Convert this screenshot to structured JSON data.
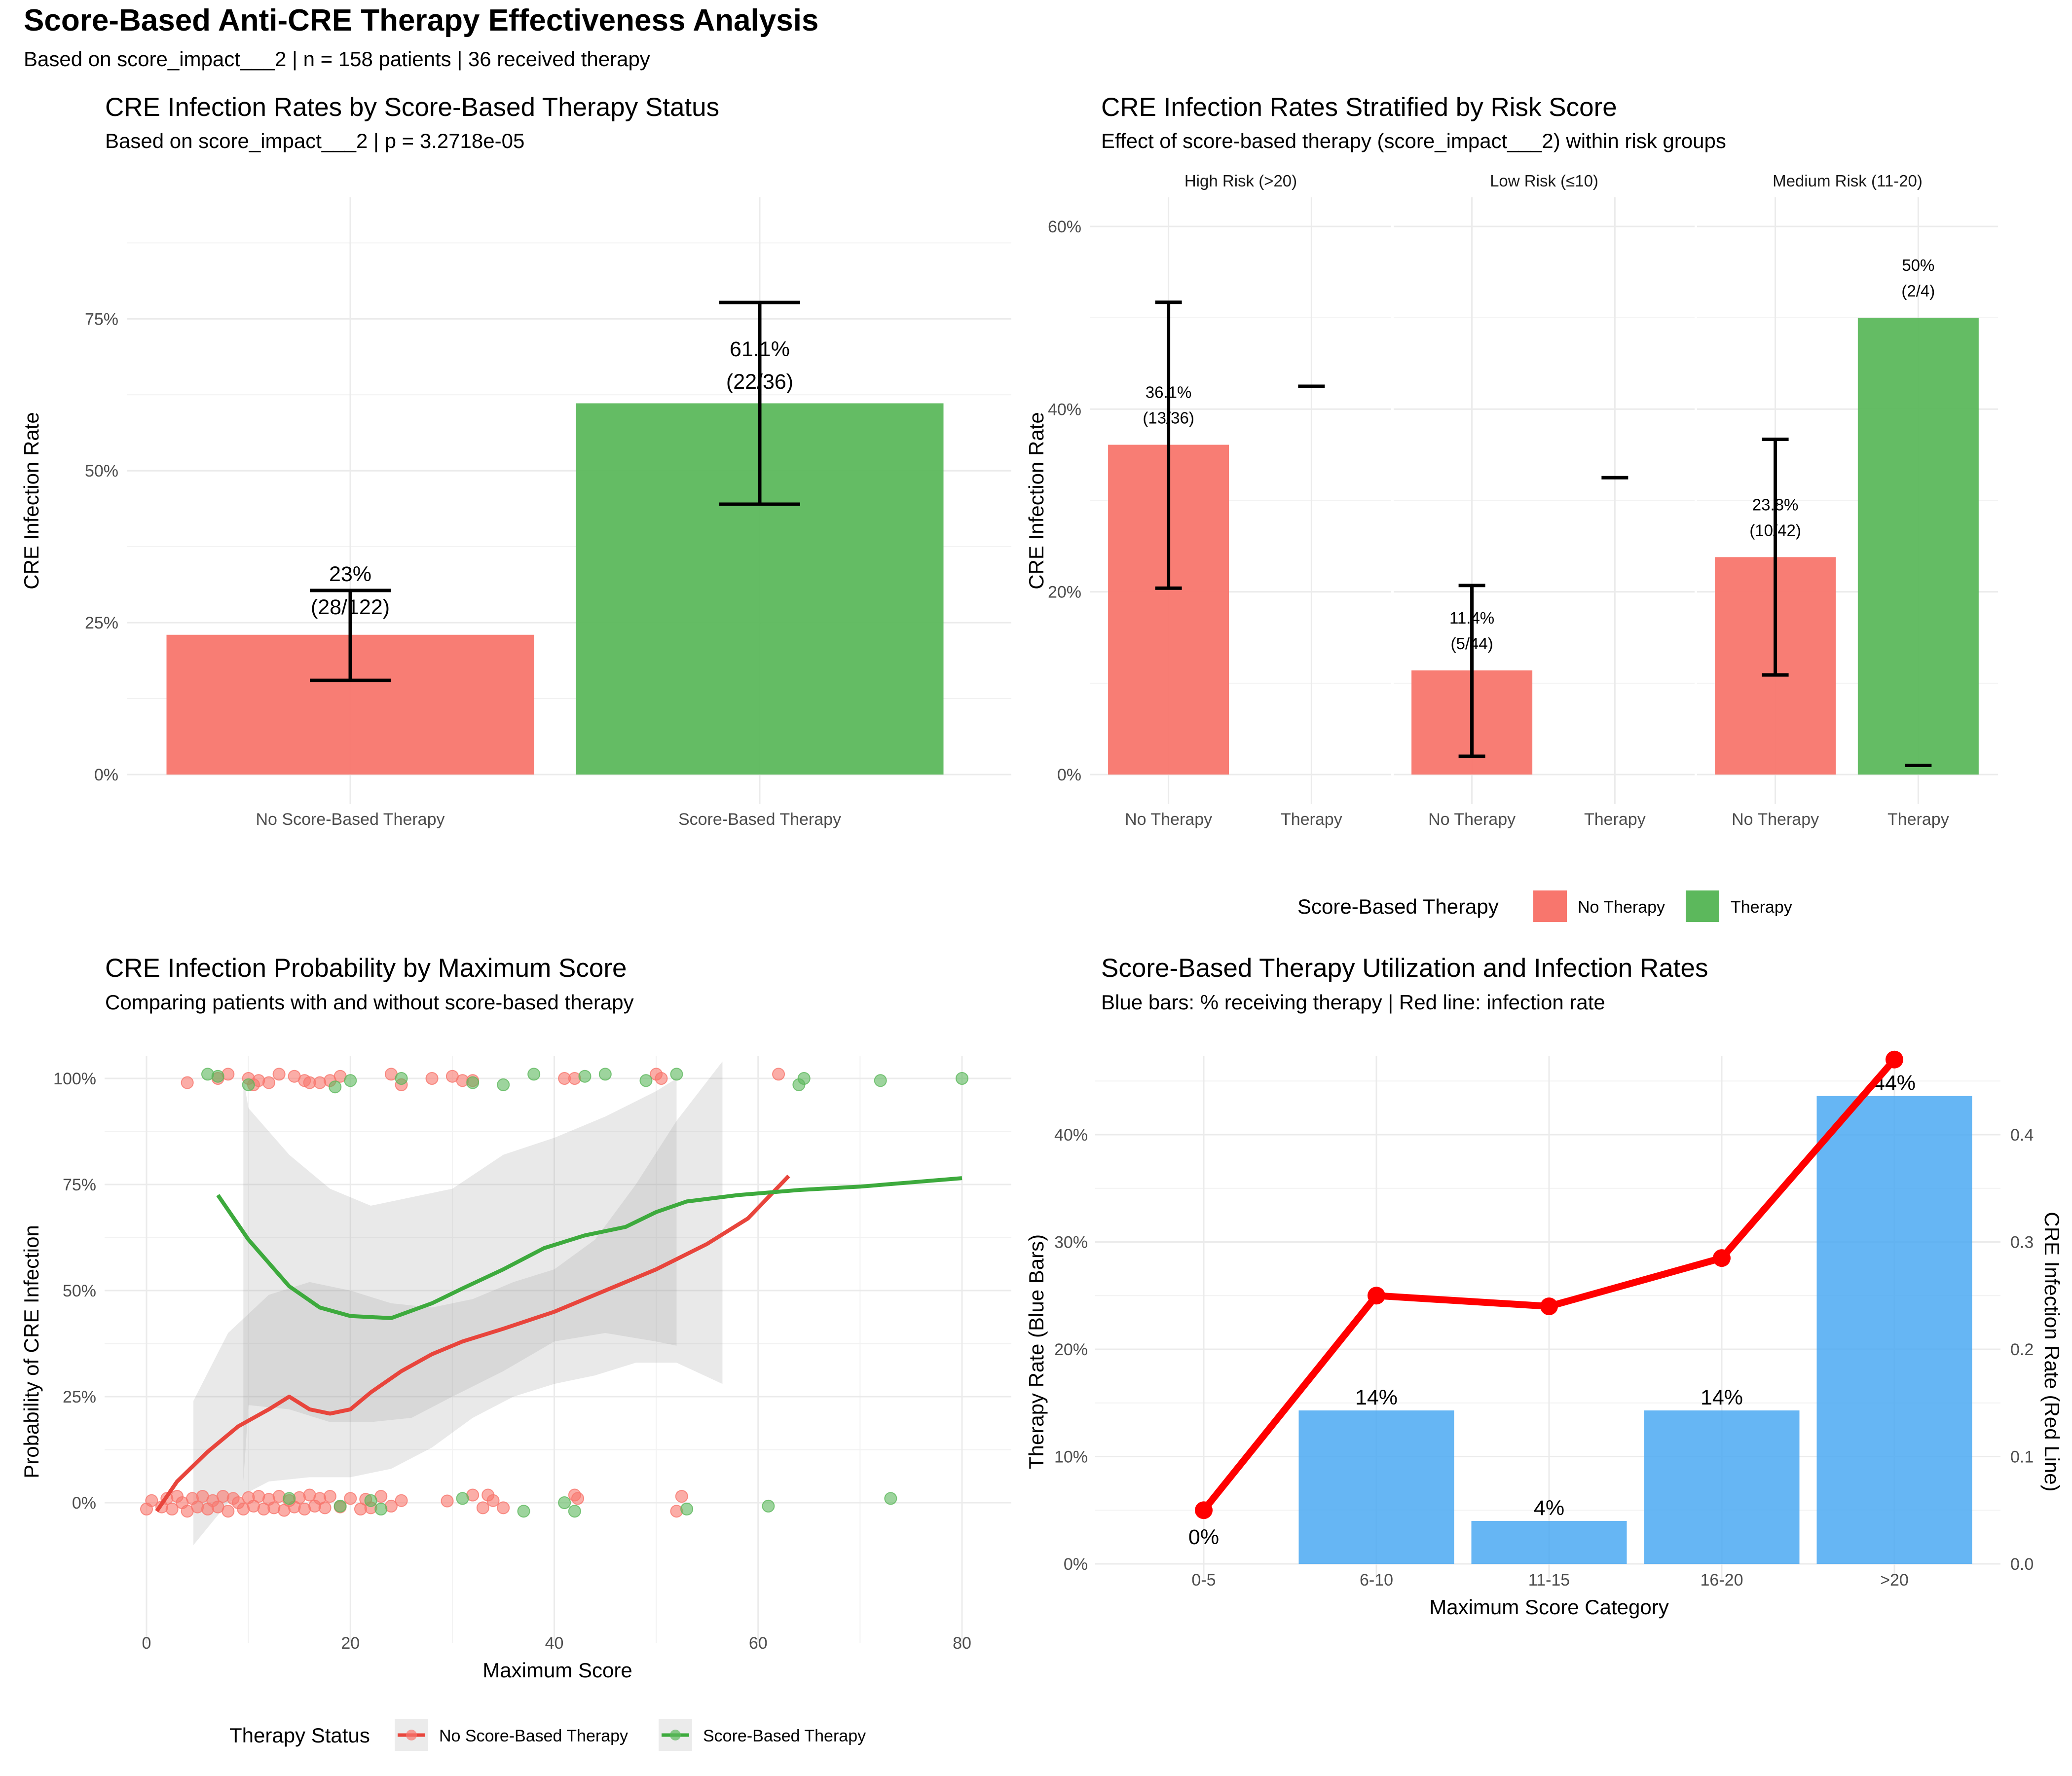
{
  "title": "Score-Based Anti-CRE Therapy Effectiveness Analysis",
  "subtitle": "Based on score_impact___2 | n = 158 patients | 36 received therapy",
  "colors": {
    "no_therapy": "#F8766D",
    "therapy": "#5CB85C",
    "blue_bar": "#4BA9F2",
    "red_line": "#FF0000",
    "red_smooth": "#E8453C",
    "green_smooth": "#3DAA3D"
  },
  "chart_data": [
    {
      "id": "p1",
      "type": "bar",
      "title": "CRE Infection Rates by Score-Based Therapy Status",
      "subtitle": "Based on score_impact___2 | p = 3.2718e-05",
      "ylabel": "CRE Infection Rate",
      "xlabel": "",
      "ylim": [
        0,
        0.95
      ],
      "yticks": [
        0,
        0.25,
        0.5,
        0.75
      ],
      "ytick_labels": [
        "0%",
        "25%",
        "50%",
        "75%"
      ],
      "categories": [
        "No Score-Based Therapy",
        "Score-Based Therapy"
      ],
      "values": [
        0.23,
        0.611
      ],
      "ci_low": [
        0.155,
        0.445
      ],
      "ci_high": [
        0.303,
        0.777
      ],
      "labels_pct": [
        "23%",
        "61.1%"
      ],
      "labels_n": [
        "(28/122)",
        "(22/36)"
      ]
    },
    {
      "id": "p2",
      "type": "bar",
      "title": "CRE Infection Rates Stratified by Risk Score",
      "subtitle": "Effect of score-based therapy (score_impact___2) within risk groups",
      "ylabel": "CRE Infection Rate",
      "ylim": [
        0,
        0.63
      ],
      "yticks": [
        0,
        0.2,
        0.4,
        0.6
      ],
      "ytick_labels": [
        "0%",
        "20%",
        "40%",
        "60%"
      ],
      "categories": [
        "No Therapy",
        "Therapy"
      ],
      "facets": [
        {
          "name": "High Risk (>20)",
          "values": [
            0.361,
            null
          ],
          "ci_low": [
            0.204,
            null
          ],
          "ci_high": [
            0.517,
            null
          ],
          "therapy_mark": 0.425,
          "labels_pct": [
            "36.1%",
            ""
          ],
          "labels_n": [
            "(13/36)",
            ""
          ]
        },
        {
          "name": "Low Risk (≤10)",
          "values": [
            0.114,
            null
          ],
          "ci_low": [
            0.02,
            null
          ],
          "ci_high": [
            0.207,
            null
          ],
          "therapy_mark": 0.325,
          "labels_pct": [
            "11.4%",
            ""
          ],
          "labels_n": [
            "(5/44)",
            ""
          ]
        },
        {
          "name": "Medium Risk (11-20)",
          "values": [
            0.238,
            0.5
          ],
          "ci_low": [
            0.109,
            null
          ],
          "ci_high": [
            0.367,
            null
          ],
          "therapy_mark": 0.01,
          "labels_pct": [
            "23.8%",
            "50%"
          ],
          "labels_n": [
            "(10/42)",
            "(2/4)"
          ]
        }
      ],
      "legend_title": "Score-Based Therapy",
      "legend_items": [
        "No Therapy",
        "Therapy"
      ]
    },
    {
      "id": "p3",
      "type": "scatter",
      "title": "CRE Infection Probability by Maximum Score",
      "subtitle": "Comparing patients with and without score-based therapy",
      "xlabel": "Maximum Score",
      "ylabel": "Probability of CRE Infection",
      "xlim": [
        -4,
        84
      ],
      "ylim": [
        -0.06,
        1.06
      ],
      "xticks": [
        0,
        20,
        40,
        60,
        80
      ],
      "yticks": [
        0,
        0.25,
        0.5,
        0.75,
        1
      ],
      "ytick_labels": [
        "0%",
        "25%",
        "50%",
        "75%",
        "100%"
      ],
      "legend_title": "Therapy Status",
      "series": [
        {
          "name": "No Score-Based Therapy",
          "points": [
            [
              0,
              -0.015
            ],
            [
              0.5,
              0.005
            ],
            [
              1.5,
              -0.01
            ],
            [
              2,
              0.01
            ],
            [
              2.5,
              -0.015
            ],
            [
              3,
              0.015
            ],
            [
              3.5,
              0
            ],
            [
              4,
              -0.02
            ],
            [
              4.5,
              0.01
            ],
            [
              5,
              -0.01
            ],
            [
              5.5,
              0.015
            ],
            [
              6,
              -0.015
            ],
            [
              6.5,
              0.005
            ],
            [
              7,
              -0.01
            ],
            [
              7.5,
              0.015
            ],
            [
              8,
              -0.02
            ],
            [
              8.5,
              0.01
            ],
            [
              9,
              0
            ],
            [
              9.5,
              -0.015
            ],
            [
              10,
              0.012
            ],
            [
              10.5,
              -0.008
            ],
            [
              11,
              0.015
            ],
            [
              11.5,
              -0.015
            ],
            [
              12,
              0.008
            ],
            [
              12.5,
              -0.012
            ],
            [
              13,
              0.015
            ],
            [
              13.5,
              -0.018
            ],
            [
              14,
              0.005
            ],
            [
              14.5,
              -0.01
            ],
            [
              15,
              0.012
            ],
            [
              15.5,
              -0.015
            ],
            [
              16,
              0.018
            ],
            [
              16.5,
              -0.008
            ],
            [
              17,
              0.01
            ],
            [
              17.5,
              -0.012
            ],
            [
              18,
              0.015
            ],
            [
              19,
              -0.01
            ],
            [
              20,
              0.01
            ],
            [
              21,
              -0.015
            ],
            [
              21.5,
              0.008
            ],
            [
              22,
              -0.012
            ],
            [
              23,
              0.015
            ],
            [
              24,
              -0.008
            ],
            [
              25,
              0.005
            ],
            [
              29.5,
              0.004
            ],
            [
              32,
              0.018
            ],
            [
              33,
              -0.012
            ],
            [
              33.5,
              0.018
            ],
            [
              34,
              0.005
            ],
            [
              35,
              -0.012
            ],
            [
              42,
              0.018
            ],
            [
              42.3,
              0.01
            ],
            [
              52,
              -0.02
            ],
            [
              52.5,
              0.015
            ],
            [
              4,
              0.99
            ],
            [
              7,
              1.0
            ],
            [
              8,
              1.01
            ],
            [
              10,
              1.0
            ],
            [
              10.5,
              0.985
            ],
            [
              11,
              0.995
            ],
            [
              12,
              0.99
            ],
            [
              13,
              1.01
            ],
            [
              14.5,
              1.005
            ],
            [
              15.5,
              0.995
            ],
            [
              16,
              0.99
            ],
            [
              17,
              0.99
            ],
            [
              18,
              0.995
            ],
            [
              19,
              1.005
            ],
            [
              24,
              1.01
            ],
            [
              25,
              0.985
            ],
            [
              28,
              1.0
            ],
            [
              30,
              1.005
            ],
            [
              31,
              0.995
            ],
            [
              32,
              0.995
            ],
            [
              41,
              1.0
            ],
            [
              42,
              1.0
            ],
            [
              50,
              1.01
            ],
            [
              50.5,
              1.0
            ],
            [
              62,
              1.01
            ]
          ]
        },
        {
          "name": "Score-Based Therapy",
          "points": [
            [
              6,
              1.01
            ],
            [
              7,
              1.005
            ],
            [
              10,
              0.985
            ],
            [
              18.5,
              0.98
            ],
            [
              20,
              0.995
            ],
            [
              25,
              1.0
            ],
            [
              32,
              0.99
            ],
            [
              35,
              0.985
            ],
            [
              38,
              1.01
            ],
            [
              43,
              1.005
            ],
            [
              45,
              1.01
            ],
            [
              49,
              0.995
            ],
            [
              52,
              1.01
            ],
            [
              64,
              0.985
            ],
            [
              64.5,
              1.0
            ],
            [
              72,
              0.995
            ],
            [
              80,
              1.0
            ],
            [
              14,
              0.01
            ],
            [
              19,
              -0.008
            ],
            [
              22,
              0.005
            ],
            [
              23,
              -0.015
            ],
            [
              31,
              0.01
            ],
            [
              37,
              -0.02
            ],
            [
              41,
              0.0
            ],
            [
              42,
              -0.02
            ],
            [
              53,
              -0.015
            ],
            [
              61,
              -0.008
            ],
            [
              73,
              0.01
            ]
          ]
        }
      ],
      "smooth": [
        {
          "name": "No Score-Based Therapy",
          "x": [
            1,
            3,
            6,
            9,
            12,
            14,
            16,
            18,
            20,
            22,
            25,
            28,
            31,
            35,
            40,
            45,
            50,
            55,
            59,
            63
          ],
          "y": [
            -0.02,
            0.05,
            0.12,
            0.18,
            0.22,
            0.25,
            0.22,
            0.21,
            0.22,
            0.26,
            0.31,
            0.35,
            0.38,
            0.41,
            0.45,
            0.5,
            0.55,
            0.61,
            0.67,
            0.77
          ]
        },
        {
          "name": "Score-Based Therapy",
          "x": [
            7,
            10,
            14,
            17,
            20,
            24,
            28,
            31,
            35,
            39,
            43,
            47,
            50,
            53,
            58,
            64,
            70,
            75,
            80
          ],
          "y": [
            0.725,
            0.62,
            0.51,
            0.46,
            0.44,
            0.435,
            0.47,
            0.505,
            0.55,
            0.6,
            0.63,
            0.65,
            0.685,
            0.71,
            0.725,
            0.737,
            0.745,
            0.755,
            0.765
          ]
        }
      ],
      "ribbons": [
        {
          "name": "No Score-Based Therapy",
          "x": [
            4.6,
            8,
            12,
            16,
            20,
            24,
            28,
            32,
            36,
            40,
            44,
            48,
            52,
            56.5
          ],
          "upper": [
            0.24,
            0.4,
            0.49,
            0.52,
            0.5,
            0.47,
            0.46,
            0.48,
            0.52,
            0.55,
            0.62,
            0.75,
            0.9,
            1.04
          ],
          "lower": [
            -0.1,
            0.0,
            0.05,
            0.06,
            0.06,
            0.08,
            0.13,
            0.2,
            0.25,
            0.28,
            0.3,
            0.33,
            0.33,
            0.28
          ]
        },
        {
          "name": "Score-Based Therapy",
          "x": [
            9.5,
            10,
            14,
            18,
            22,
            26,
            30,
            35,
            40,
            45,
            50,
            52
          ],
          "upper": [
            1.0,
            0.93,
            0.82,
            0.74,
            0.7,
            0.72,
            0.74,
            0.82,
            0.86,
            0.91,
            0.97,
            1.0
          ],
          "lower": [
            0.05,
            0.23,
            0.22,
            0.19,
            0.19,
            0.2,
            0.25,
            0.31,
            0.38,
            0.4,
            0.38,
            0.37
          ]
        }
      ]
    },
    {
      "id": "p4",
      "type": "bar",
      "title": "Score-Based Therapy Utilization and Infection Rates",
      "subtitle": "Blue bars: % receiving therapy | Red line: infection rate",
      "xlabel": "Maximum Score Category",
      "ylabel": "Therapy Rate (Blue Bars)",
      "ylabel_right": "CRE Infection Rate (Red Line)",
      "ylim": [
        0,
        0.47
      ],
      "yticks": [
        0,
        0.1,
        0.2,
        0.3,
        0.4
      ],
      "ytick_labels": [
        "0%",
        "10%",
        "20%",
        "30%",
        "40%"
      ],
      "ytick_labels_right": [
        "0.0",
        "0.1",
        "0.2",
        "0.3",
        "0.4"
      ],
      "categories": [
        "0-5",
        "6-10",
        "11-15",
        "16-20",
        ">20"
      ],
      "values": [
        0,
        0.143,
        0.04,
        0.143,
        0.436
      ],
      "bar_labels": [
        "0%",
        "14%",
        "4%",
        "14%",
        "44%"
      ],
      "line_values": [
        0.05,
        0.25,
        0.24,
        0.285,
        0.47
      ]
    }
  ],
  "legend_p2": {
    "title": "Score-Based Therapy",
    "items": [
      "No Therapy",
      "Therapy"
    ]
  },
  "legend_p3": {
    "title": "Therapy Status",
    "items": [
      "No Score-Based Therapy",
      "Score-Based Therapy"
    ]
  }
}
